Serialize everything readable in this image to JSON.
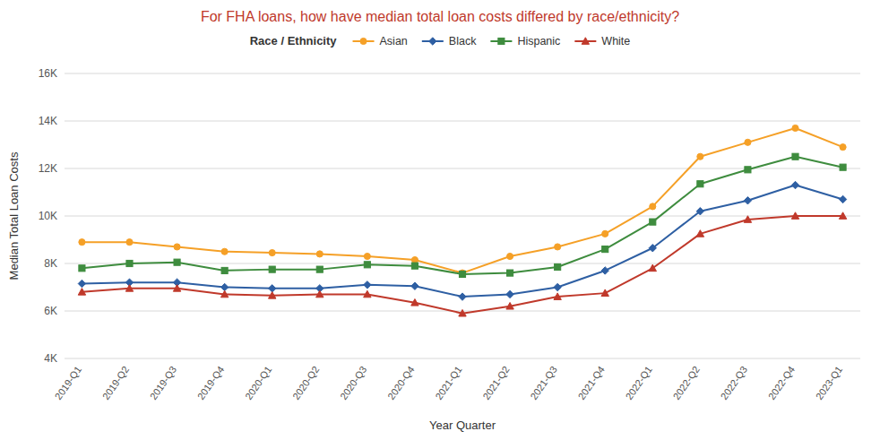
{
  "chart_data": {
    "type": "line",
    "title": "For FHA loans, how have median total loan costs differed by race/ethnicity?",
    "xlabel": "Year Quarter",
    "ylabel": "Median Total Loan Costs",
    "legend_title": "Race / Ethnicity",
    "categories": [
      "2019-Q1",
      "2019-Q2",
      "2019-Q3",
      "2019-Q4",
      "2020-Q1",
      "2020-Q2",
      "2020-Q3",
      "2020-Q4",
      "2021-Q1",
      "2021-Q2",
      "2021-Q3",
      "2021-Q4",
      "2022-Q1",
      "2022-Q2",
      "2022-Q3",
      "2022-Q4",
      "2023-Q1"
    ],
    "series": [
      {
        "name": "Asian",
        "color": "#f5a027",
        "marker": "circle",
        "values": [
          8900,
          8900,
          8700,
          8500,
          8450,
          8400,
          8300,
          8150,
          7600,
          8300,
          8700,
          9250,
          10400,
          12500,
          13100,
          13700,
          12900
        ]
      },
      {
        "name": "Black",
        "color": "#2e5fa3",
        "marker": "diamond",
        "values": [
          7150,
          7200,
          7200,
          7000,
          6950,
          6950,
          7100,
          7050,
          6600,
          6700,
          7000,
          7700,
          8650,
          10200,
          10650,
          11300,
          10700
        ]
      },
      {
        "name": "Hispanic",
        "color": "#3e8c3e",
        "marker": "square",
        "values": [
          7800,
          8000,
          8050,
          7700,
          7750,
          7750,
          7950,
          7900,
          7550,
          7600,
          7850,
          8600,
          9750,
          11350,
          11950,
          12500,
          12050
        ]
      },
      {
        "name": "White",
        "color": "#c0392b",
        "marker": "triangle",
        "values": [
          6800,
          6950,
          6950,
          6700,
          6650,
          6700,
          6700,
          6350,
          5900,
          6200,
          6600,
          6750,
          7800,
          9250,
          9850,
          10000,
          10000
        ]
      }
    ],
    "ylim": [
      4000,
      16000
    ],
    "yticks": [
      {
        "value": 4000,
        "label": "4K"
      },
      {
        "value": 6000,
        "label": "6K"
      },
      {
        "value": 8000,
        "label": "8K"
      },
      {
        "value": 10000,
        "label": "10K"
      },
      {
        "value": 12000,
        "label": "12K"
      },
      {
        "value": 14000,
        "label": "14K"
      },
      {
        "value": 16000,
        "label": "16K"
      }
    ],
    "grid": true,
    "legend": "top"
  }
}
